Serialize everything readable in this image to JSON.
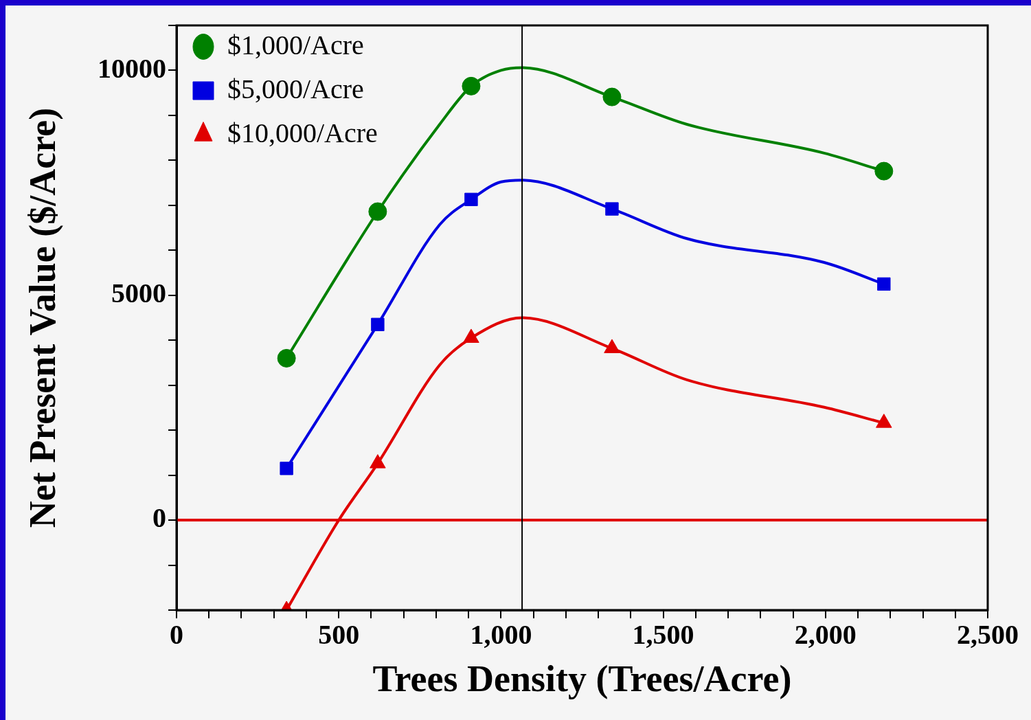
{
  "chart_data": {
    "type": "scatter",
    "xlabel": "Trees Density (Trees/Acre)",
    "ylabel": "Net Present Value ($/Acre)",
    "xlim": [
      0,
      2500
    ],
    "ylim": [
      -2000,
      11000
    ],
    "xticks": [
      0,
      {
        "value": 100,
        "label": null
      },
      {
        "value": 200,
        "label": null
      },
      {
        "value": 300,
        "label": null
      },
      {
        "value": 400,
        "label": null
      },
      500,
      {
        "value": 600,
        "label": null
      },
      {
        "value": 700,
        "label": null
      },
      {
        "value": 800,
        "label": null
      },
      {
        "value": 900,
        "label": null
      },
      {
        "value": 1000,
        "label": "1,000"
      },
      {
        "value": 1100,
        "label": null
      },
      {
        "value": 1200,
        "label": null
      },
      {
        "value": 1300,
        "label": null
      },
      {
        "value": 1400,
        "label": null
      },
      {
        "value": 1500,
        "label": "1,500"
      },
      {
        "value": 1600,
        "label": null
      },
      {
        "value": 1700,
        "label": null
      },
      {
        "value": 1800,
        "label": null
      },
      {
        "value": 1900,
        "label": null
      },
      {
        "value": 2000,
        "label": "2,000"
      },
      {
        "value": 2100,
        "label": null
      },
      {
        "value": 2200,
        "label": null
      },
      {
        "value": 2300,
        "label": null
      },
      {
        "value": 2400,
        "label": null
      },
      {
        "value": 2500,
        "label": "2,500"
      }
    ],
    "yticks": [
      {
        "value": -2000,
        "label": null
      },
      {
        "value": -1000,
        "label": null
      },
      0,
      {
        "value": 1000,
        "label": null
      },
      {
        "value": 2000,
        "label": null
      },
      {
        "value": 3000,
        "label": null
      },
      {
        "value": 4000,
        "label": null
      },
      5000,
      {
        "value": 6000,
        "label": null
      },
      {
        "value": 7000,
        "label": null
      },
      {
        "value": 8000,
        "label": null
      },
      {
        "value": 9000,
        "label": null
      },
      10000,
      {
        "value": 11000,
        "label": null
      }
    ],
    "grid": false,
    "legend": "top left",
    "ref_lines": [
      {
        "axis": "y",
        "value": 0,
        "color": "#e00000"
      },
      {
        "axis": "x",
        "value": 1065,
        "color": "#000000"
      }
    ],
    "series": [
      {
        "name": "$1,000/Acre",
        "type": "scatter",
        "marker": "circle",
        "color": "#008000",
        "x": [
          339,
          620,
          908,
          1342,
          2180
        ],
        "values": [
          3600,
          6860,
          9650,
          9410,
          7760
        ]
      },
      {
        "name": "$5,000/Acre",
        "type": "scatter",
        "marker": "square",
        "color": "#0000e0",
        "x": [
          339,
          620,
          908,
          1342,
          2180
        ],
        "values": [
          1150,
          4350,
          7130,
          6920,
          5250
        ]
      },
      {
        "name": "$10,000/Acre",
        "type": "scatter",
        "marker": "triangle",
        "color": "#e00000",
        "x": [
          339,
          620,
          908,
          1342,
          2180
        ],
        "values": [
          -2000,
          1260,
          4050,
          3820,
          2160
        ]
      },
      {
        "type": "line",
        "marker": "none",
        "color": "#008000",
        "x": [
          339,
          620,
          811,
          908,
          1000,
          1065,
          1342,
          1573,
          1996,
          2180
        ],
        "values": [
          3600,
          6860,
          8800,
          9650,
          10000,
          10060,
          9410,
          8800,
          8160,
          7760
        ]
      },
      {
        "type": "line",
        "marker": "none",
        "color": "#0000e0",
        "x": [
          339,
          620,
          811,
          908,
          1000,
          1065,
          1342,
          1573,
          1996,
          2180
        ],
        "values": [
          1150,
          4350,
          6570,
          7130,
          7520,
          7560,
          6920,
          6260,
          5730,
          5250
        ]
      },
      {
        "type": "line",
        "marker": "none",
        "color": "#e00000",
        "x": [
          339,
          500,
          620,
          811,
          908,
          1065,
          1342,
          1573,
          1996,
          2180
        ],
        "values": [
          -2000,
          0,
          1260,
          3450,
          4050,
          4500,
          3820,
          3120,
          2510,
          2160
        ]
      }
    ]
  }
}
